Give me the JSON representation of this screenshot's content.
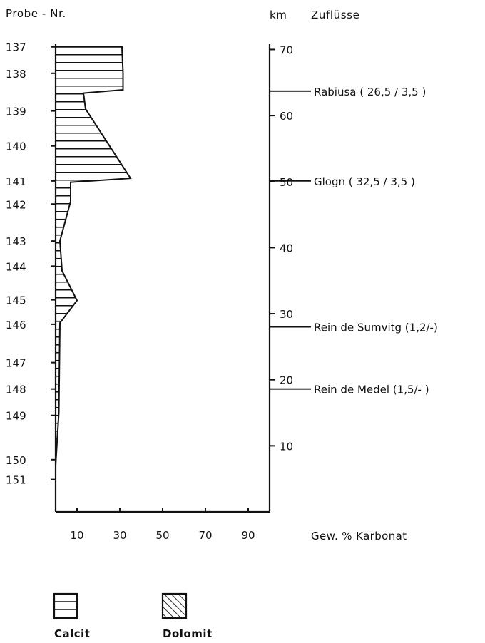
{
  "chart_data": {
    "type": "area",
    "left_axis_title": "Probe - Nr.",
    "right_axis_title": "km",
    "tributaries_title": "Zuflüsse",
    "xlabel": "Gew. % Karbonat",
    "x_ticks": [
      10,
      30,
      50,
      70,
      90
    ],
    "xlim": [
      0,
      100
    ],
    "km_ticks": [
      10,
      20,
      30,
      40,
      50,
      60,
      70
    ],
    "km_range": [
      0,
      70
    ],
    "samples": [
      {
        "label": "137",
        "km": 70.4
      },
      {
        "label": "138",
        "km": 66.4
      },
      {
        "label": "139",
        "km": 60.7
      },
      {
        "label": "140",
        "km": 55.4
      },
      {
        "label": "141",
        "km": 50.1
      },
      {
        "label": "142",
        "km": 46.6
      },
      {
        "label": "143",
        "km": 41.0
      },
      {
        "label": "144",
        "km": 37.2
      },
      {
        "label": "145",
        "km": 32.1
      },
      {
        "label": "146",
        "km": 28.4
      },
      {
        "label": "147",
        "km": 22.6
      },
      {
        "label": "148",
        "km": 18.6
      },
      {
        "label": "149",
        "km": 14.6
      },
      {
        "label": "150",
        "km": 7.9
      },
      {
        "label": "151",
        "km": 4.9
      }
    ],
    "calcit_profile": [
      {
        "km": 70.4,
        "value": 31
      },
      {
        "km": 66.4,
        "value": 31.5
      },
      {
        "km": 63.9,
        "value": 31.5
      },
      {
        "km": 63.4,
        "value": 13
      },
      {
        "km": 61.0,
        "value": 14
      },
      {
        "km": 50.5,
        "value": 35
      },
      {
        "km": 49.9,
        "value": 7
      },
      {
        "km": 47.0,
        "value": 7
      },
      {
        "km": 41.0,
        "value": 2
      },
      {
        "km": 36.5,
        "value": 3
      },
      {
        "km": 32.0,
        "value": 10
      },
      {
        "km": 28.6,
        "value": 2
      },
      {
        "km": 15.0,
        "value": 1.5
      },
      {
        "km": 7.0,
        "value": 0
      }
    ],
    "tributaries": [
      {
        "name": "Rabiusa ( 26,5 / 3,5 )",
        "km": 63.7
      },
      {
        "name": "Glogn ( 32,5 / 3,5 )",
        "km": 50.1
      },
      {
        "name": "Rein de Sumvitg (1,2/-)",
        "km": 28.0
      },
      {
        "name": "Rein de Medel (1,5/- )",
        "km": 18.6
      }
    ],
    "legend": [
      {
        "name": "Calcit",
        "pattern": "horizontal-lines"
      },
      {
        "name": "Dolomit",
        "pattern": "diagonal-hatch"
      }
    ]
  }
}
